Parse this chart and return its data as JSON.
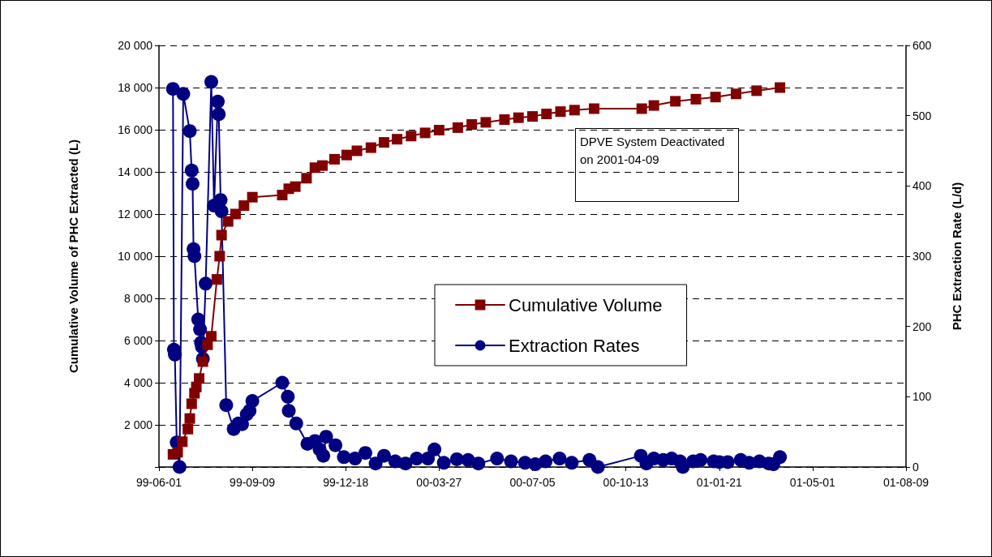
{
  "chart_data": {
    "type": "line",
    "ylabel": "Cumulative Volume of PHC Extracted (L)",
    "y2label": "PHC Extraction Rate (L/d)",
    "annotations": [
      "DPVE System Deactivated on 2001-04-09"
    ],
    "xlim": [
      "1999-06-01",
      "2001-08-09"
    ],
    "xticks": [
      {
        "value": "1999-06-01",
        "label": "99-06-01"
      },
      {
        "value": "1999-09-09",
        "label": "99-09-09"
      },
      {
        "value": "1999-12-18",
        "label": "99-12-18"
      },
      {
        "value": "2000-03-27",
        "label": "00-03-27"
      },
      {
        "value": "2000-07-05",
        "label": "00-07-05"
      },
      {
        "value": "2000-10-13",
        "label": "00-10-13"
      },
      {
        "value": "2001-01-21",
        "label": "01-01-21"
      },
      {
        "value": "2001-05-01",
        "label": "01-05-01"
      },
      {
        "value": "2001-08-09",
        "label": "01-08-09"
      }
    ],
    "ylim": [
      0,
      20000
    ],
    "yticks": [
      {
        "value": 0,
        "label": null
      },
      {
        "value": 2000,
        "label": "2 000"
      },
      {
        "value": 4000,
        "label": "4 000"
      },
      {
        "value": 6000,
        "label": "6 000"
      },
      {
        "value": 8000,
        "label": "8 000"
      },
      {
        "value": 10000,
        "label": "10 000"
      },
      {
        "value": 12000,
        "label": "12 000"
      },
      {
        "value": 14000,
        "label": "14 000"
      },
      {
        "value": 16000,
        "label": "16 000"
      },
      {
        "value": 18000,
        "label": "18 000"
      },
      {
        "value": 20000,
        "label": "20 000"
      }
    ],
    "y2lim": [
      0,
      600
    ],
    "y2ticks": [
      0,
      100,
      200,
      300,
      400,
      500,
      600
    ],
    "grid": "y",
    "legend": "center",
    "line_style": "solid",
    "series": [
      {
        "name": "Cumulative Volume",
        "color": "#800000",
        "marker": "square",
        "x": [
          "1999-06-16",
          "1999-06-21",
          "1999-06-26",
          "1999-07-02",
          "1999-07-04",
          "1999-07-06",
          "1999-07-09",
          "1999-07-11",
          "1999-07-14",
          "1999-07-18",
          "1999-07-23",
          "1999-07-27",
          "1999-08-02",
          "1999-08-05",
          "1999-08-07",
          "1999-08-14",
          "1999-08-22",
          "1999-08-31",
          "1999-09-09",
          "1999-10-11",
          "1999-10-18",
          "1999-10-25",
          "1999-11-06",
          "1999-11-15",
          "1999-11-23",
          "1999-12-06",
          "1999-12-19",
          "1999-12-30",
          "2000-01-14",
          "2000-01-28",
          "2000-02-11",
          "2000-02-26",
          "2000-03-12",
          "2000-03-27",
          "2000-04-16",
          "2000-05-01",
          "2000-05-16",
          "2000-06-05",
          "2000-06-20",
          "2000-07-05",
          "2000-07-20",
          "2000-08-04",
          "2000-08-19",
          "2000-09-09",
          "2000-10-30",
          "2000-11-12",
          "2000-12-05",
          "2000-12-27",
          "2001-01-17",
          "2001-02-08",
          "2001-03-02",
          "2001-03-27"
        ],
        "values": [
          600,
          700,
          1200,
          1800,
          2300,
          3000,
          3500,
          3800,
          4200,
          5000,
          5800,
          6200,
          8900,
          10000,
          11000,
          11650,
          12000,
          12400,
          12800,
          12900,
          13200,
          13300,
          13700,
          14200,
          14300,
          14600,
          14800,
          15000,
          15150,
          15400,
          15550,
          15700,
          15850,
          15980,
          16100,
          16250,
          16350,
          16480,
          16570,
          16630,
          16750,
          16860,
          16930,
          17000,
          17000,
          17150,
          17350,
          17450,
          17550,
          17700,
          17850,
          18000
        ]
      },
      {
        "name": "Extraction Rates",
        "color": "#000080",
        "marker": "circle",
        "axis": "y2",
        "x": [
          "1999-06-16",
          "1999-06-17",
          "1999-06-18",
          "1999-06-20",
          "1999-06-23",
          "1999-06-27",
          "1999-07-04",
          "1999-07-06",
          "1999-07-07",
          "1999-07-08",
          "1999-07-09",
          "1999-07-13",
          "1999-07-15",
          "1999-07-16",
          "1999-07-17",
          "1999-07-18",
          "1999-07-21",
          "1999-07-27",
          "1999-07-30",
          "1999-08-03",
          "1999-08-04",
          "1999-08-06",
          "1999-08-07",
          "1999-08-12",
          "1999-08-20",
          "1999-08-25",
          "1999-08-29",
          "1999-09-03",
          "1999-09-06",
          "1999-09-09",
          "1999-10-11",
          "1999-10-17",
          "1999-10-18",
          "1999-10-26",
          "1999-11-07",
          "1999-11-15",
          "1999-11-20",
          "1999-11-24",
          "1999-11-27",
          "1999-12-07",
          "1999-12-16",
          "1999-12-28",
          "2000-01-08",
          "2000-01-19",
          "2000-01-28",
          "2000-02-09",
          "2000-02-20",
          "2000-03-03",
          "2000-03-15",
          "2000-03-22",
          "2000-04-01",
          "2000-04-15",
          "2000-04-27",
          "2000-05-08",
          "2000-05-28",
          "2000-06-12",
          "2000-06-27",
          "2000-07-08",
          "2000-07-19",
          "2000-08-03",
          "2000-08-16",
          "2000-09-04",
          "2000-09-13",
          "2000-10-29",
          "2000-11-04",
          "2000-11-12",
          "2000-11-22",
          "2000-12-01",
          "2000-12-10",
          "2000-12-13",
          "2000-12-24",
          "2001-01-01",
          "2001-01-15",
          "2001-01-21",
          "2001-01-30",
          "2001-02-13",
          "2001-02-22",
          "2001-03-05",
          "2001-03-15",
          "2001-03-20",
          "2001-03-27"
        ],
        "values": [
          538,
          167,
          160,
          35,
          0,
          531,
          478,
          422,
          403,
          310,
          300,
          210,
          196,
          177,
          171,
          154,
          261,
          548,
          372,
          520,
          502,
          380,
          364,
          88,
          54,
          62,
          61,
          75,
          80,
          94,
          120,
          100,
          80,
          62,
          33,
          37,
          25,
          16,
          43,
          31,
          14,
          12,
          20,
          5,
          16,
          8,
          5,
          12,
          12,
          25,
          6,
          11,
          10,
          5,
          12,
          8,
          6,
          4,
          8,
          12,
          6,
          10,
          0,
          16,
          5,
          12,
          10,
          12,
          8,
          0,
          8,
          10,
          8,
          7,
          7,
          10,
          6,
          8,
          5,
          4,
          14
        ]
      }
    ]
  }
}
